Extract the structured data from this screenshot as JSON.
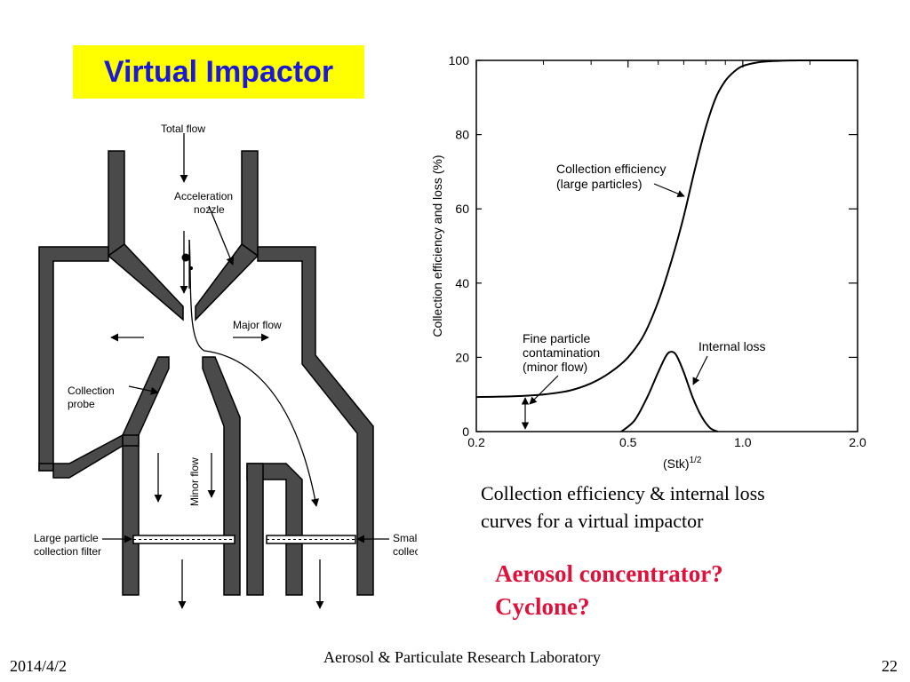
{
  "slide": {
    "title": "Virtual Impactor",
    "caption_line1": "Collection efficiency & internal loss",
    "caption_line2": "curves for a virtual impactor",
    "question_line1": "Aerosol concentrator?",
    "question_line2": "Cyclone?",
    "footer": {
      "date": "2014/4/2",
      "lab": "Aerosol & Particulate Research Laboratory",
      "page": "22"
    }
  },
  "diagram": {
    "labels": {
      "total_flow": "Total flow",
      "accel_line1": "Acceleration",
      "accel_line2": "nozzle",
      "major_flow": "Major flow",
      "probe_line1": "Collection",
      "probe_line2": "probe",
      "minor_flow": "Minor flow",
      "large_line1": "Large particle",
      "large_line2": "collection filter",
      "small_line1": "Small particle",
      "small_line2": "collection filter"
    }
  },
  "chart_data": {
    "type": "line",
    "xlabel": "(Stk)",
    "xlabel_sup": "1/2",
    "ylabel": "Collection efficiency and loss (%)",
    "x_scale": "log",
    "xlim": [
      0.2,
      2.0
    ],
    "ylim": [
      0,
      100
    ],
    "x_ticks": [
      "0.2",
      "0.5",
      "1.0",
      "2.0"
    ],
    "x_tick_values": [
      0.2,
      0.5,
      1.0,
      2.0
    ],
    "y_ticks": [
      "0",
      "20",
      "40",
      "60",
      "80",
      "100"
    ],
    "y_tick_values": [
      0,
      20,
      40,
      60,
      80,
      100
    ],
    "series": [
      {
        "name_line1": "Collection efficiency",
        "name_line2": "(large particles)",
        "x": [
          0.2,
          0.25,
          0.3,
          0.35,
          0.4,
          0.45,
          0.5,
          0.55,
          0.6,
          0.65,
          0.7,
          0.75,
          0.8,
          0.85,
          0.9,
          0.95,
          1.0,
          1.1,
          1.2,
          1.4,
          1.6,
          2.0
        ],
        "values": [
          9.3,
          9.5,
          10,
          11,
          13,
          16,
          20,
          26,
          35,
          46,
          58,
          71,
          82,
          90,
          94.5,
          97,
          98.5,
          99.5,
          99.8,
          100,
          100,
          100
        ]
      },
      {
        "name_line1": "Internal loss",
        "x": [
          0.48,
          0.52,
          0.56,
          0.6,
          0.63,
          0.65,
          0.67,
          0.7,
          0.74,
          0.78,
          0.82,
          0.86
        ],
        "values": [
          0,
          3,
          9,
          16,
          20.5,
          21.5,
          20.5,
          16,
          9,
          4,
          1,
          0
        ]
      }
    ],
    "annotation": {
      "line1": "Fine particle",
      "line2": "contamination",
      "line3": "(minor flow)"
    }
  }
}
